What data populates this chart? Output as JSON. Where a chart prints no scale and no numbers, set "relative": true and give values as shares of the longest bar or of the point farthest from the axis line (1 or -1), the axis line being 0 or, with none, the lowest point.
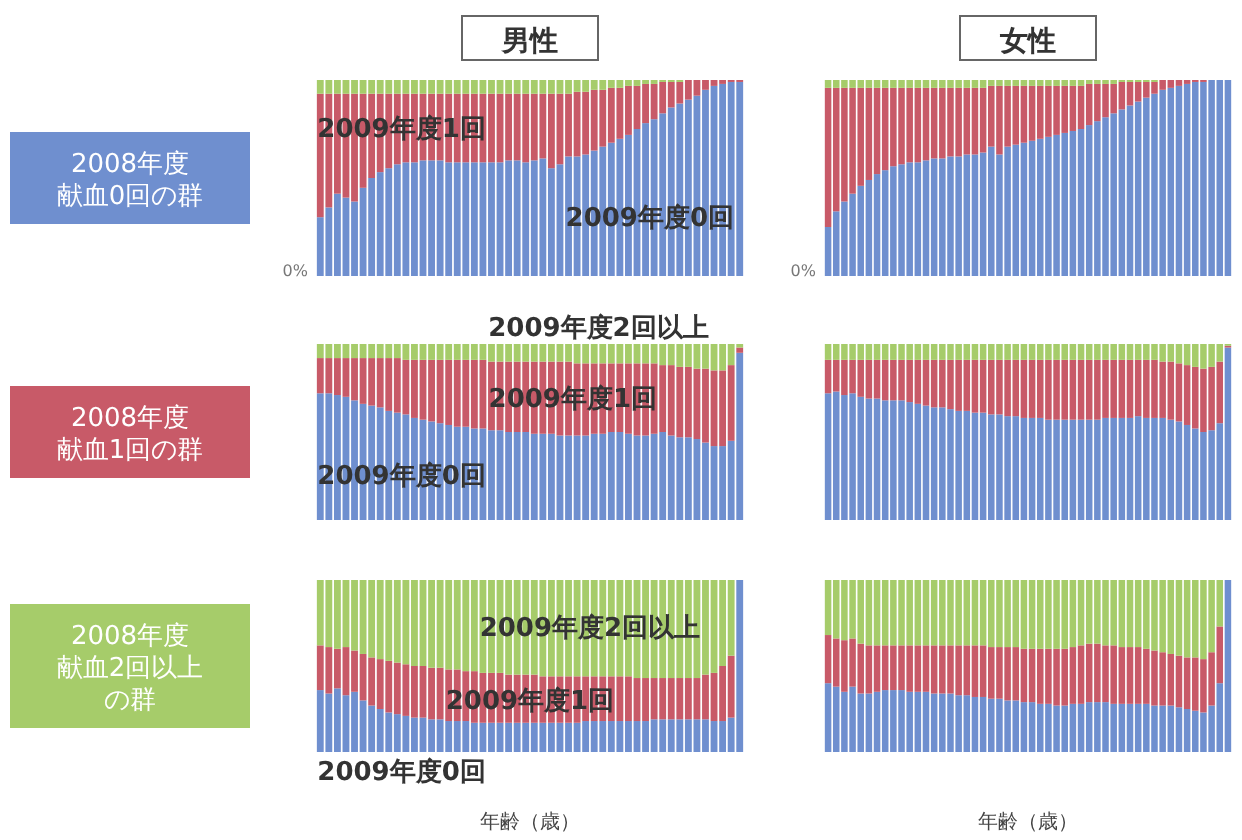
{
  "chart_data": [
    {
      "type": "bar",
      "stacked": true,
      "relative": true,
      "title": "男性",
      "ylabel": "2008年度献血0回の群",
      "annotations": [
        "0%"
      ],
      "categories": [
        null,
        null,
        null,
        null,
        null,
        null,
        null,
        null,
        null,
        null,
        null,
        null,
        null,
        null,
        null,
        null,
        null,
        null,
        null,
        null,
        null,
        null,
        null,
        null,
        null,
        null,
        null,
        null,
        null,
        null,
        null,
        null,
        null,
        null,
        null,
        null,
        null,
        null,
        null,
        null,
        null,
        null,
        null,
        null,
        null,
        null,
        null,
        null,
        null,
        null
      ],
      "series": [
        {
          "name": "2009年度0回",
          "color": "#6f8fcf",
          "values": [
            0.3,
            0.35,
            0.42,
            0.4,
            0.38,
            0.45,
            0.5,
            0.53,
            0.55,
            0.57,
            0.58,
            0.58,
            0.59,
            0.59,
            0.59,
            0.58,
            0.58,
            0.58,
            0.58,
            0.58,
            0.58,
            0.58,
            0.59,
            0.59,
            0.58,
            0.59,
            0.6,
            0.55,
            0.57,
            0.61,
            0.61,
            0.62,
            0.64,
            0.66,
            0.68,
            0.7,
            0.72,
            0.75,
            0.78,
            0.8,
            0.83,
            0.86,
            0.88,
            0.9,
            0.92,
            0.95,
            0.97,
            0.98,
            0.99,
            0.99
          ]
        },
        {
          "name": "2009年度1回",
          "color": "#c85a68",
          "values": [
            0.63,
            0.58,
            0.51,
            0.53,
            0.55,
            0.48,
            0.43,
            0.4,
            0.38,
            0.36,
            0.35,
            0.35,
            0.34,
            0.34,
            0.34,
            0.35,
            0.35,
            0.35,
            0.35,
            0.35,
            0.35,
            0.35,
            0.34,
            0.34,
            0.35,
            0.34,
            0.33,
            0.38,
            0.36,
            0.32,
            0.33,
            0.32,
            0.31,
            0.29,
            0.28,
            0.26,
            0.25,
            0.22,
            0.2,
            0.18,
            0.16,
            0.13,
            0.11,
            0.1,
            0.08,
            0.05,
            0.03,
            0.02,
            0.01,
            0.01
          ]
        },
        {
          "color": "#a6cc6a",
          "values": [
            0.07,
            0.07,
            0.07,
            0.07,
            0.07,
            0.07,
            0.07,
            0.07,
            0.07,
            0.07,
            0.07,
            0.07,
            0.07,
            0.07,
            0.07,
            0.07,
            0.07,
            0.07,
            0.07,
            0.07,
            0.07,
            0.07,
            0.07,
            0.07,
            0.07,
            0.07,
            0.07,
            0.07,
            0.07,
            0.07,
            0.06,
            0.06,
            0.05,
            0.05,
            0.04,
            0.04,
            0.03,
            0.03,
            0.02,
            0.02,
            0.01,
            0.01,
            0.01,
            0,
            0,
            0,
            0,
            0,
            0,
            0
          ]
        }
      ]
    },
    {
      "type": "bar",
      "stacked": true,
      "relative": true,
      "title": "女性",
      "annotations": [
        "0%"
      ],
      "categories": [
        null,
        null,
        null,
        null,
        null,
        null,
        null,
        null,
        null,
        null,
        null,
        null,
        null,
        null,
        null,
        null,
        null,
        null,
        null,
        null,
        null,
        null,
        null,
        null,
        null,
        null,
        null,
        null,
        null,
        null,
        null,
        null,
        null,
        null,
        null,
        null,
        null,
        null,
        null,
        null,
        null,
        null,
        null,
        null,
        null,
        null,
        null,
        null,
        null,
        null
      ],
      "series": [
        {
          "color": "#6f8fcf",
          "values": [
            0.25,
            0.33,
            0.38,
            0.42,
            0.46,
            0.49,
            0.52,
            0.54,
            0.56,
            0.57,
            0.58,
            0.58,
            0.59,
            0.6,
            0.6,
            0.61,
            0.61,
            0.62,
            0.62,
            0.63,
            0.66,
            0.62,
            0.66,
            0.67,
            0.68,
            0.69,
            0.7,
            0.71,
            0.72,
            0.73,
            0.74,
            0.75,
            0.77,
            0.79,
            0.81,
            0.83,
            0.85,
            0.87,
            0.89,
            0.91,
            0.93,
            0.95,
            0.96,
            0.97,
            0.98,
            0.99,
            0.99,
            1.0,
            1.0,
            1.0
          ]
        },
        {
          "color": "#c85a68",
          "values": [
            0.71,
            0.63,
            0.58,
            0.54,
            0.5,
            0.47,
            0.44,
            0.42,
            0.4,
            0.39,
            0.38,
            0.38,
            0.37,
            0.36,
            0.36,
            0.35,
            0.35,
            0.34,
            0.34,
            0.33,
            0.31,
            0.35,
            0.31,
            0.3,
            0.29,
            0.28,
            0.27,
            0.26,
            0.25,
            0.24,
            0.23,
            0.22,
            0.21,
            0.19,
            0.17,
            0.15,
            0.14,
            0.12,
            0.1,
            0.08,
            0.06,
            0.05,
            0.04,
            0.03,
            0.02,
            0.01,
            0.01,
            0,
            0,
            0
          ]
        },
        {
          "color": "#a6cc6a",
          "values": [
            0.04,
            0.04,
            0.04,
            0.04,
            0.04,
            0.04,
            0.04,
            0.04,
            0.04,
            0.04,
            0.04,
            0.04,
            0.04,
            0.04,
            0.04,
            0.04,
            0.04,
            0.04,
            0.04,
            0.04,
            0.03,
            0.03,
            0.03,
            0.03,
            0.03,
            0.03,
            0.03,
            0.03,
            0.03,
            0.03,
            0.03,
            0.03,
            0.02,
            0.02,
            0.02,
            0.02,
            0.01,
            0.01,
            0.01,
            0.01,
            0.01,
            0,
            0,
            0,
            0,
            0,
            0,
            0,
            0,
            0
          ]
        }
      ]
    },
    {
      "type": "bar",
      "stacked": true,
      "relative": true,
      "ylabel": "2008年度献血1回の群",
      "categories": [
        null,
        null,
        null,
        null,
        null,
        null,
        null,
        null,
        null,
        null,
        null,
        null,
        null,
        null,
        null,
        null,
        null,
        null,
        null,
        null,
        null,
        null,
        null,
        null,
        null,
        null,
        null,
        null,
        null,
        null,
        null,
        null,
        null,
        null,
        null,
        null,
        null,
        null,
        null,
        null,
        null,
        null,
        null,
        null,
        null,
        null,
        null,
        null,
        null,
        null
      ],
      "series": [
        {
          "name": "2009年度0回",
          "color": "#6f8fcf",
          "values": [
            0.72,
            0.72,
            0.71,
            0.7,
            0.68,
            0.66,
            0.65,
            0.64,
            0.62,
            0.61,
            0.6,
            0.58,
            0.57,
            0.56,
            0.55,
            0.54,
            0.53,
            0.53,
            0.52,
            0.52,
            0.51,
            0.51,
            0.5,
            0.5,
            0.5,
            0.49,
            0.49,
            0.49,
            0.48,
            0.48,
            0.48,
            0.48,
            0.49,
            0.49,
            0.5,
            0.5,
            0.49,
            0.48,
            0.48,
            0.49,
            0.5,
            0.48,
            0.47,
            0.47,
            0.46,
            0.44,
            0.42,
            0.42,
            0.45,
            0.95
          ]
        },
        {
          "name": "2009年度1回",
          "color": "#c85a68",
          "values": [
            0.2,
            0.2,
            0.21,
            0.22,
            0.24,
            0.26,
            0.27,
            0.28,
            0.3,
            0.31,
            0.31,
            0.33,
            0.34,
            0.35,
            0.36,
            0.37,
            0.38,
            0.38,
            0.39,
            0.39,
            0.39,
            0.39,
            0.4,
            0.4,
            0.4,
            0.41,
            0.41,
            0.41,
            0.42,
            0.42,
            0.41,
            0.41,
            0.4,
            0.4,
            0.39,
            0.39,
            0.4,
            0.41,
            0.41,
            0.4,
            0.38,
            0.4,
            0.4,
            0.4,
            0.4,
            0.42,
            0.43,
            0.43,
            0.43,
            0.03
          ]
        },
        {
          "name": "2009年度2回以上",
          "color": "#a6cc6a",
          "values": [
            0.08,
            0.08,
            0.08,
            0.08,
            0.08,
            0.08,
            0.08,
            0.08,
            0.08,
            0.08,
            0.09,
            0.09,
            0.09,
            0.09,
            0.09,
            0.09,
            0.09,
            0.09,
            0.09,
            0.09,
            0.1,
            0.1,
            0.1,
            0.1,
            0.1,
            0.1,
            0.1,
            0.1,
            0.1,
            0.1,
            0.11,
            0.11,
            0.11,
            0.11,
            0.11,
            0.11,
            0.11,
            0.11,
            0.11,
            0.11,
            0.12,
            0.12,
            0.13,
            0.13,
            0.14,
            0.14,
            0.15,
            0.15,
            0.12,
            0.02
          ]
        }
      ]
    },
    {
      "type": "bar",
      "stacked": true,
      "relative": true,
      "categories": [
        null,
        null,
        null,
        null,
        null,
        null,
        null,
        null,
        null,
        null,
        null,
        null,
        null,
        null,
        null,
        null,
        null,
        null,
        null,
        null,
        null,
        null,
        null,
        null,
        null,
        null,
        null,
        null,
        null,
        null,
        null,
        null,
        null,
        null,
        null,
        null,
        null,
        null,
        null,
        null,
        null,
        null,
        null,
        null,
        null,
        null,
        null,
        null,
        null,
        null
      ],
      "series": [
        {
          "color": "#6f8fcf",
          "values": [
            0.72,
            0.73,
            0.71,
            0.72,
            0.7,
            0.69,
            0.69,
            0.68,
            0.68,
            0.68,
            0.67,
            0.66,
            0.65,
            0.64,
            0.64,
            0.63,
            0.62,
            0.62,
            0.61,
            0.61,
            0.6,
            0.6,
            0.59,
            0.59,
            0.58,
            0.58,
            0.58,
            0.57,
            0.57,
            0.57,
            0.57,
            0.57,
            0.57,
            0.57,
            0.58,
            0.58,
            0.58,
            0.58,
            0.59,
            0.58,
            0.58,
            0.58,
            0.57,
            0.56,
            0.54,
            0.52,
            0.5,
            0.51,
            0.55,
            0.98
          ]
        },
        {
          "color": "#c85a68",
          "values": [
            0.19,
            0.18,
            0.2,
            0.19,
            0.21,
            0.22,
            0.22,
            0.23,
            0.23,
            0.23,
            0.24,
            0.25,
            0.26,
            0.27,
            0.27,
            0.28,
            0.29,
            0.29,
            0.3,
            0.3,
            0.31,
            0.31,
            0.32,
            0.32,
            0.33,
            0.33,
            0.33,
            0.34,
            0.34,
            0.34,
            0.34,
            0.34,
            0.34,
            0.34,
            0.33,
            0.33,
            0.33,
            0.33,
            0.32,
            0.33,
            0.33,
            0.32,
            0.33,
            0.33,
            0.34,
            0.35,
            0.36,
            0.36,
            0.35,
            0.01
          ]
        },
        {
          "color": "#a6cc6a",
          "values": [
            0.09,
            0.09,
            0.09,
            0.09,
            0.09,
            0.09,
            0.09,
            0.09,
            0.09,
            0.09,
            0.09,
            0.09,
            0.09,
            0.09,
            0.09,
            0.09,
            0.09,
            0.09,
            0.09,
            0.09,
            0.09,
            0.09,
            0.09,
            0.09,
            0.09,
            0.09,
            0.09,
            0.09,
            0.09,
            0.09,
            0.09,
            0.09,
            0.09,
            0.09,
            0.09,
            0.09,
            0.09,
            0.09,
            0.09,
            0.09,
            0.09,
            0.1,
            0.1,
            0.11,
            0.12,
            0.13,
            0.14,
            0.13,
            0.1,
            0.01
          ]
        }
      ]
    },
    {
      "type": "bar",
      "stacked": true,
      "relative": true,
      "ylabel": "2008年度献血2回以上の群",
      "xlabel": "年齢（歳）",
      "categories": [
        null,
        null,
        null,
        null,
        null,
        null,
        null,
        null,
        null,
        null,
        null,
        null,
        null,
        null,
        null,
        null,
        null,
        null,
        null,
        null,
        null,
        null,
        null,
        null,
        null,
        null,
        null,
        null,
        null,
        null,
        null,
        null,
        null,
        null,
        null,
        null,
        null,
        null,
        null,
        null,
        null,
        null,
        null,
        null,
        null,
        null,
        null,
        null,
        null,
        null
      ],
      "series": [
        {
          "name": "2009年度0回",
          "color": "#6f8fcf",
          "values": [
            0.36,
            0.34,
            0.37,
            0.33,
            0.35,
            0.3,
            0.27,
            0.25,
            0.23,
            0.22,
            0.21,
            0.2,
            0.2,
            0.19,
            0.19,
            0.18,
            0.18,
            0.18,
            0.17,
            0.17,
            0.17,
            0.17,
            0.17,
            0.17,
            0.17,
            0.17,
            0.17,
            0.17,
            0.17,
            0.17,
            0.17,
            0.18,
            0.18,
            0.18,
            0.18,
            0.18,
            0.18,
            0.18,
            0.18,
            0.19,
            0.19,
            0.19,
            0.19,
            0.19,
            0.19,
            0.19,
            0.18,
            0.18,
            0.2,
            1.0
          ]
        },
        {
          "name": "2009年度1回",
          "color": "#c85a68",
          "values": [
            0.26,
            0.27,
            0.23,
            0.28,
            0.24,
            0.27,
            0.28,
            0.29,
            0.3,
            0.3,
            0.3,
            0.3,
            0.3,
            0.3,
            0.3,
            0.3,
            0.3,
            0.29,
            0.3,
            0.29,
            0.29,
            0.29,
            0.28,
            0.28,
            0.28,
            0.28,
            0.27,
            0.27,
            0.27,
            0.27,
            0.27,
            0.26,
            0.26,
            0.26,
            0.26,
            0.26,
            0.26,
            0.25,
            0.25,
            0.24,
            0.24,
            0.24,
            0.24,
            0.24,
            0.24,
            0.26,
            0.28,
            0.32,
            0.36,
            0
          ]
        },
        {
          "name": "2009年度2回以上",
          "color": "#a6cc6a",
          "values": [
            0.38,
            0.39,
            0.4,
            0.39,
            0.41,
            0.43,
            0.45,
            0.46,
            0.47,
            0.48,
            0.49,
            0.5,
            0.5,
            0.51,
            0.51,
            0.52,
            0.52,
            0.53,
            0.53,
            0.54,
            0.54,
            0.54,
            0.55,
            0.55,
            0.55,
            0.55,
            0.56,
            0.56,
            0.56,
            0.56,
            0.56,
            0.56,
            0.56,
            0.56,
            0.56,
            0.56,
            0.56,
            0.57,
            0.57,
            0.57,
            0.57,
            0.57,
            0.57,
            0.57,
            0.57,
            0.55,
            0.54,
            0.5,
            0.44,
            0
          ]
        }
      ]
    },
    {
      "type": "bar",
      "stacked": true,
      "relative": true,
      "xlabel": "年齢（歳）",
      "categories": [
        null,
        null,
        null,
        null,
        null,
        null,
        null,
        null,
        null,
        null,
        null,
        null,
        null,
        null,
        null,
        null,
        null,
        null,
        null,
        null,
        null,
        null,
        null,
        null,
        null,
        null,
        null,
        null,
        null,
        null,
        null,
        null,
        null,
        null,
        null,
        null,
        null,
        null,
        null,
        null,
        null,
        null,
        null,
        null,
        null,
        null,
        null,
        null,
        null,
        null
      ],
      "series": [
        {
          "color": "#6f8fcf",
          "values": [
            0.4,
            0.38,
            0.35,
            0.38,
            0.34,
            0.34,
            0.35,
            0.36,
            0.36,
            0.36,
            0.35,
            0.35,
            0.35,
            0.34,
            0.34,
            0.34,
            0.33,
            0.33,
            0.32,
            0.32,
            0.31,
            0.31,
            0.3,
            0.3,
            0.29,
            0.29,
            0.28,
            0.28,
            0.27,
            0.27,
            0.28,
            0.28,
            0.29,
            0.29,
            0.29,
            0.28,
            0.28,
            0.28,
            0.28,
            0.28,
            0.27,
            0.27,
            0.27,
            0.26,
            0.25,
            0.24,
            0.23,
            0.27,
            0.4,
            1.0
          ]
        },
        {
          "color": "#c85a68",
          "values": [
            0.28,
            0.28,
            0.3,
            0.28,
            0.29,
            0.28,
            0.27,
            0.26,
            0.26,
            0.26,
            0.27,
            0.27,
            0.27,
            0.28,
            0.28,
            0.28,
            0.29,
            0.29,
            0.3,
            0.3,
            0.3,
            0.3,
            0.31,
            0.31,
            0.31,
            0.31,
            0.32,
            0.32,
            0.33,
            0.33,
            0.33,
            0.34,
            0.34,
            0.34,
            0.33,
            0.34,
            0.33,
            0.33,
            0.33,
            0.32,
            0.32,
            0.31,
            0.3,
            0.3,
            0.3,
            0.31,
            0.31,
            0.31,
            0.33,
            0
          ]
        },
        {
          "color": "#a6cc6a",
          "values": [
            0.32,
            0.34,
            0.35,
            0.34,
            0.37,
            0.38,
            0.38,
            0.38,
            0.38,
            0.38,
            0.38,
            0.38,
            0.38,
            0.38,
            0.38,
            0.38,
            0.38,
            0.38,
            0.38,
            0.38,
            0.39,
            0.39,
            0.39,
            0.39,
            0.4,
            0.4,
            0.4,
            0.4,
            0.4,
            0.4,
            0.39,
            0.38,
            0.37,
            0.37,
            0.38,
            0.38,
            0.39,
            0.39,
            0.39,
            0.4,
            0.41,
            0.42,
            0.43,
            0.44,
            0.45,
            0.45,
            0.46,
            0.42,
            0.27,
            0
          ]
        }
      ]
    }
  ]
}
